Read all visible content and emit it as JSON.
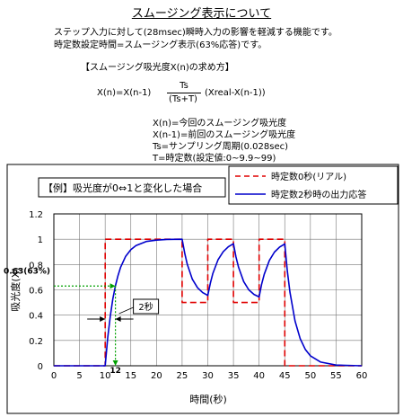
{
  "header": {
    "title": "スムージング表示について",
    "intro_1": "ステップ入力に対して(28msec)瞬時入力の影響を軽減する機能です。",
    "intro_2": "時定数設定時間=スムージング表示(63%応答)です。",
    "formula_heading": "【スムージング吸光度X(n)の求め方】",
    "formula_left": "X(n)=X(n-1)",
    "formula_num": "Ts",
    "formula_den": "(Ts+T)",
    "formula_right": "(Xreal-X(n-1))",
    "defs": [
      "X(n)=今回のスムージング吸光度",
      "X(n-1)=前回のスムージング吸光度",
      "Ts=サンプリング周期(0.028sec)",
      "T=時定数(設定値:0~9.9~99)"
    ]
  },
  "chart_data": {
    "type": "line",
    "xlabel": "時間(秒)",
    "ylabel": "吸光度(X)",
    "xlim": [
      0,
      60
    ],
    "ylim": [
      0,
      1.2
    ],
    "x_ticks": [
      "0",
      "5",
      "10",
      "15",
      "20",
      "25",
      "30",
      "35",
      "40",
      "45",
      "50",
      "55",
      "60"
    ],
    "y_ticks": [
      "0",
      "0.2",
      "0.4",
      "0.6",
      "0.8",
      "1",
      "1.2"
    ],
    "grid": true,
    "legend_position": "top-right",
    "example_label": "【例】吸光度が0⇔1と変化した場合",
    "series": [
      {
        "name": "時定数0秒(リアル)",
        "color": "#e00000",
        "dash": true,
        "x": [
          0,
          10,
          10,
          25,
          25,
          30,
          30,
          35,
          35,
          40,
          40,
          45,
          45,
          60
        ],
        "y": [
          0,
          0,
          1,
          1,
          0.5,
          0.5,
          1,
          1,
          0.5,
          0.5,
          1,
          1,
          0,
          0
        ]
      },
      {
        "name": "時定数2秒時の出力応答",
        "color": "#0000cc",
        "dash": false,
        "x": [
          0,
          10,
          10.5,
          11,
          11.5,
          12,
          12.5,
          13,
          14,
          15,
          16,
          18,
          20,
          22,
          25,
          25.5,
          26,
          27,
          28,
          29,
          30,
          30.5,
          31,
          32,
          33,
          34,
          35,
          35.5,
          36,
          37,
          38,
          39,
          40,
          40.5,
          41,
          42,
          43,
          44,
          45,
          45.5,
          46,
          47,
          48,
          49,
          50,
          52,
          55,
          60
        ],
        "y": [
          0,
          0,
          0.221,
          0.393,
          0.528,
          0.632,
          0.713,
          0.777,
          0.865,
          0.918,
          0.95,
          0.982,
          0.993,
          0.998,
          1,
          0.89,
          0.803,
          0.684,
          0.616,
          0.578,
          0.556,
          0.654,
          0.731,
          0.837,
          0.901,
          0.94,
          0.964,
          0.86,
          0.778,
          0.665,
          0.6,
          0.564,
          0.544,
          0.645,
          0.723,
          0.832,
          0.898,
          0.938,
          0.963,
          0.75,
          0.584,
          0.354,
          0.215,
          0.13,
          0.079,
          0.029,
          0.006,
          0
        ]
      }
    ],
    "annotations": {
      "y_marker_value": 0.63,
      "y_marker_label": "0.63(63%)",
      "x_marker_value": 12,
      "x_marker_label": "12",
      "span_label": "2秒"
    }
  },
  "colors": {
    "realtime": "#e00000",
    "response": "#0000cc",
    "annotation": "#00a000"
  }
}
